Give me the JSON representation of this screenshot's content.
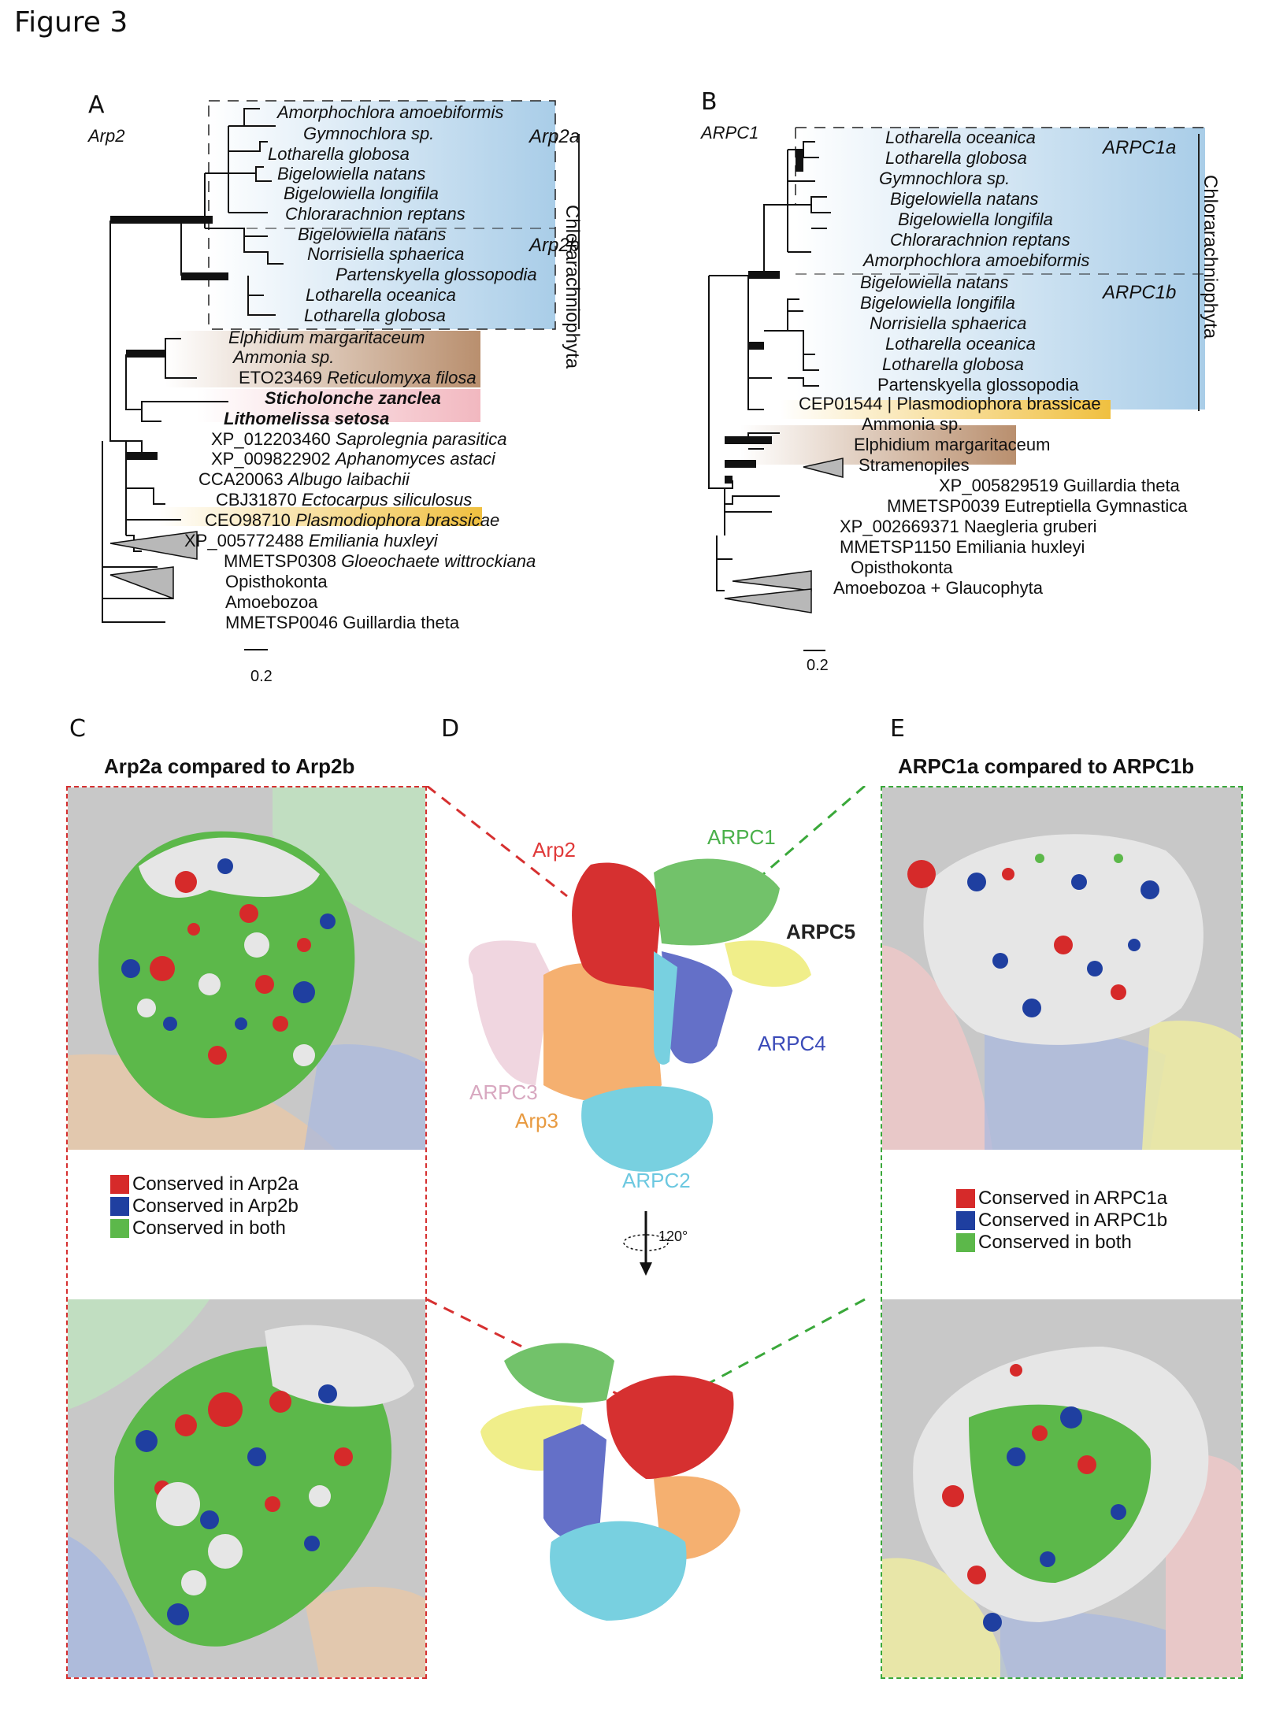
{
  "figure_title": "Figure 3",
  "panelA": {
    "letter": "A",
    "subtitle": "Arp2",
    "clade_upper": "Arp2a",
    "clade_lower": "Arp2b",
    "group_vertical": "Chlorarachniophyta",
    "scale": "0.2",
    "taxa": [
      {
        "pre": "",
        "name": "Amorphochlora amoebiformis"
      },
      {
        "pre": "",
        "name": "Gymnochlora sp."
      },
      {
        "pre": "",
        "name": "Lotharella globosa"
      },
      {
        "pre": "",
        "name": "Bigelowiella natans"
      },
      {
        "pre": "",
        "name": "Bigelowiella longifila"
      },
      {
        "pre": "",
        "name": "Chlorarachnion reptans"
      },
      {
        "pre": "",
        "name": "Bigelowiella natans"
      },
      {
        "pre": "",
        "name": "Norrisiella sphaerica"
      },
      {
        "pre": "",
        "name": "Partenskyella glossopodia"
      },
      {
        "pre": "",
        "name": "Lotharella oceanica"
      },
      {
        "pre": "",
        "name": "Lotharella globosa"
      },
      {
        "pre": "",
        "name": "Elphidium margaritaceum"
      },
      {
        "pre": "",
        "name": "Ammonia sp."
      },
      {
        "pre": "ETO23469 ",
        "name": "Reticulomyxa filosa"
      },
      {
        "pre": "",
        "name": "Sticholonche zanclea"
      },
      {
        "pre": "",
        "name": "Lithomelissa setosa"
      },
      {
        "pre": "XP_012203460 ",
        "name": "Saprolegnia parasitica"
      },
      {
        "pre": "XP_009822902 ",
        "name": "Aphanomyces astaci"
      },
      {
        "pre": "CCA20063 ",
        "name": "Albugo laibachii"
      },
      {
        "pre": "CBJ31870 ",
        "name": "Ectocarpus siliculosus"
      },
      {
        "pre": "CEO98710 ",
        "name": "Plasmodiophora brassicae"
      },
      {
        "pre": "XP_005772488 ",
        "name": "Emiliania huxleyi"
      },
      {
        "pre": "MMETSP0308 ",
        "name": "Gloeochaete wittrockiana"
      },
      {
        "pre": "",
        "name": "Opisthokonta"
      },
      {
        "pre": "",
        "name": "Amoebozoa"
      },
      {
        "pre": "",
        "name": "MMETSP0046 Guillardia theta"
      }
    ]
  },
  "panelB": {
    "letter": "B",
    "subtitle": "ARPC1",
    "clade_upper": "ARPC1a",
    "clade_lower": "ARPC1b",
    "group_vertical": "Chlorarachniophyta",
    "scale": "0.2",
    "taxa": [
      "Lotharella oceanica",
      "Lotharella globosa",
      "Gymnochlora sp.",
      "Bigelowiella natans",
      "Bigelowiella longifila",
      "Chlorarachnion reptans",
      "Amorphochlora amoebiformis",
      "Bigelowiella natans",
      "Bigelowiella longifila",
      "Norrisiella sphaerica",
      "Lotharella oceanica",
      "Lotharella globosa",
      "Partenskyella glossopodia",
      "CEP01544 | Plasmodiophora brassicae",
      "Ammonia sp.",
      "Elphidium margaritaceum",
      "Stramenopiles",
      "XP_005829519 Guillardia theta",
      "MMETSP0039 Eutreptiella Gymnastica",
      "XP_002669371 Naegleria gruberi",
      "MMETSP1150 Emiliania huxleyi",
      "Opisthokonta",
      "Amoebozoa + Glaucophyta"
    ]
  },
  "panelC": {
    "letter": "C",
    "title": "Arp2a compared to Arp2b",
    "legend": [
      "Conserved in Arp2a",
      "Conserved in Arp2b",
      "Conserved in both"
    ]
  },
  "panelD": {
    "letter": "D",
    "labels": {
      "arp2": "Arp2",
      "arpc1": "ARPC1",
      "arpc5": "ARPC5",
      "arpc4": "ARPC4",
      "arpc3": "ARPC3",
      "arp3": "Arp3",
      "arpc2": "ARPC2"
    },
    "rotation": "120°"
  },
  "panelE": {
    "letter": "E",
    "title": "ARPC1a compared to ARPC1b",
    "legend": [
      "Conserved in ARPC1a",
      "Conserved in ARPC1b",
      "Conserved in both"
    ]
  },
  "colors": {
    "red": "#d62a2a",
    "blue": "#1f3fa0",
    "green": "#5cb84a",
    "arp2_red": "#d63030",
    "arpc1_green": "#72c26a",
    "arpc5_yellow": "#f0ee8a",
    "arpc4_blue": "#6470c8",
    "arpc3_pink": "#f0d6e0",
    "arp3_orange": "#f5b070",
    "arpc2_cyan": "#78d0e0",
    "title_red": "#e03a3a",
    "title_green": "#3aa83a"
  }
}
